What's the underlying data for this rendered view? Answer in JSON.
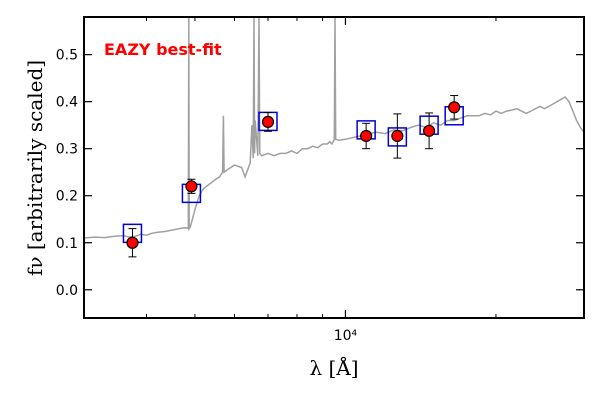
{
  "chart_data": {
    "type": "scatter",
    "title": "",
    "xlabel": "λ [Å]",
    "ylabel": "fν [arbitrarily scaled]",
    "xscale": "log",
    "xlim": [
      3000,
      30000
    ],
    "ylim": [
      -0.06,
      0.58
    ],
    "ytick_values": [
      0.0,
      0.1,
      0.2,
      0.3,
      0.4,
      0.5
    ],
    "ytick_labels": [
      "0.0",
      "0.1",
      "0.2",
      "0.3",
      "0.4",
      "0.5"
    ],
    "xtick_values": [
      10000
    ],
    "xtick_labels": [
      "10⁴"
    ],
    "minor_xticks": [
      4000,
      5000,
      6000,
      7000,
      8000,
      9000,
      20000
    ],
    "grid": false,
    "annotation": {
      "text": "EAZY best-fit",
      "color": "#ff0000",
      "placement": "top-left"
    },
    "series": [
      {
        "style": "line",
        "color": "#a0a0a0",
        "x": [
          3000,
          3150,
          3300,
          3450,
          3600,
          3700,
          3800,
          3900,
          4000,
          4100,
          4200,
          4350,
          4500,
          4650,
          4800,
          4850,
          4861,
          4870,
          4900,
          5000,
          5100,
          5200,
          5350,
          5500,
          5600,
          5680,
          5700,
          5720,
          5800,
          6000,
          6200,
          6300,
          6450,
          6500,
          6540,
          6563,
          6580,
          6600,
          6680,
          6716,
          6740,
          6800,
          7000,
          7200,
          7400,
          7600,
          7800,
          8000,
          8200,
          8400,
          8600,
          8800,
          9000,
          9200,
          9300,
          9400,
          9500,
          9532,
          9560,
          9700,
          10000,
          10500,
          11000,
          11500,
          12000,
          12500,
          13000,
          13500,
          14000,
          14500,
          15000,
          15500,
          16000,
          16500,
          17000,
          17500,
          18000,
          18500,
          19000,
          19500,
          20000,
          20500,
          21000,
          21500,
          22000,
          22500,
          23000,
          23500,
          24000,
          24500,
          25000,
          25500,
          26000,
          26500,
          27000,
          27500,
          28000,
          28500,
          29000,
          29500,
          30000
        ],
        "y": [
          0.11,
          0.112,
          0.111,
          0.114,
          0.115,
          0.112,
          0.114,
          0.118,
          0.116,
          0.12,
          0.122,
          0.124,
          0.127,
          0.13,
          0.132,
          0.13,
          0.58,
          0.13,
          0.135,
          0.17,
          0.2,
          0.215,
          0.225,
          0.235,
          0.24,
          0.25,
          0.37,
          0.25,
          0.255,
          0.265,
          0.26,
          0.24,
          0.27,
          0.35,
          0.28,
          0.58,
          0.29,
          0.36,
          0.285,
          0.58,
          0.29,
          0.285,
          0.29,
          0.285,
          0.29,
          0.29,
          0.295,
          0.29,
          0.3,
          0.3,
          0.305,
          0.302,
          0.31,
          0.31,
          0.315,
          0.31,
          0.32,
          0.58,
          0.32,
          0.318,
          0.32,
          0.325,
          0.33,
          0.335,
          0.332,
          0.34,
          0.338,
          0.345,
          0.35,
          0.345,
          0.355,
          0.35,
          0.36,
          0.36,
          0.365,
          0.37,
          0.37,
          0.37,
          0.375,
          0.372,
          0.38,
          0.375,
          0.38,
          0.382,
          0.385,
          0.38,
          0.375,
          0.38,
          0.385,
          0.39,
          0.385,
          0.39,
          0.395,
          0.4,
          0.405,
          0.41,
          0.4,
          0.38,
          0.36,
          0.345,
          0.335
        ]
      },
      {
        "style": "square",
        "color": "#0000dd",
        "x": [
          3750,
          4920,
          7000,
          11000,
          12700,
          14700,
          16500
        ],
        "y": [
          0.12,
          0.205,
          0.358,
          0.34,
          0.325,
          0.35,
          0.37
        ]
      },
      {
        "style": "errorbar",
        "color": "#ff0000",
        "x": [
          3750,
          4920,
          7000,
          11000,
          12700,
          14700,
          16500
        ],
        "y": [
          0.1,
          0.22,
          0.357,
          0.327,
          0.327,
          0.338,
          0.388
        ],
        "yerr": [
          0.03,
          0.015,
          0.02,
          0.027,
          0.047,
          0.038,
          0.025
        ]
      }
    ]
  }
}
